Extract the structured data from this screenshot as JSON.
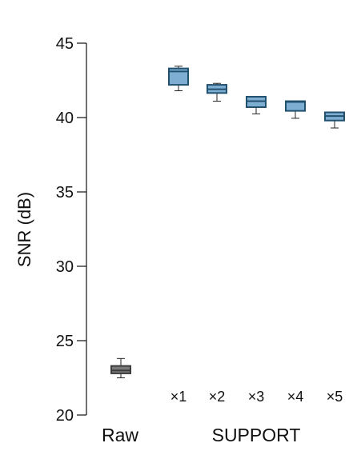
{
  "chart_data": {
    "type": "box",
    "ylabel": "SNR (dB)",
    "ylim": [
      20,
      45
    ],
    "yticks": [
      20,
      25,
      30,
      35,
      40,
      45
    ],
    "grid": false,
    "legend": "none",
    "group_labels": [
      "Raw",
      "SUPPORT"
    ],
    "categories": [
      "Raw",
      "×1",
      "×2",
      "×3",
      "×4",
      "×5"
    ],
    "boxes": [
      {
        "label": "Raw",
        "whisker_low": 22.5,
        "q1": 22.8,
        "median": 23.0,
        "q3": 23.3,
        "whisker_high": 23.8,
        "color": "#7a7a7a",
        "stroke": "#3c3c3c"
      },
      {
        "label": "×1",
        "whisker_low": 41.8,
        "q1": 42.2,
        "median": 43.1,
        "q3": 43.3,
        "whisker_high": 43.45,
        "color": "#7eafd3",
        "stroke": "#22506f"
      },
      {
        "label": "×2",
        "whisker_low": 41.1,
        "q1": 41.65,
        "median": 41.9,
        "q3": 42.2,
        "whisker_high": 42.3,
        "color": "#7eafd3",
        "stroke": "#22506f"
      },
      {
        "label": "×3",
        "whisker_low": 40.25,
        "q1": 40.7,
        "median": 41.1,
        "q3": 41.4,
        "whisker_high": 41.4,
        "color": "#7eafd3",
        "stroke": "#22506f"
      },
      {
        "label": "×4",
        "whisker_low": 39.95,
        "q1": 40.45,
        "median": 41.05,
        "q3": 41.1,
        "whisker_high": 41.1,
        "color": "#7eafd3",
        "stroke": "#22506f"
      },
      {
        "label": "×5",
        "whisker_low": 39.3,
        "q1": 39.8,
        "median": 40.1,
        "q3": 40.35,
        "whisker_high": 40.35,
        "color": "#7eafd3",
        "stroke": "#22506f"
      }
    ]
  }
}
